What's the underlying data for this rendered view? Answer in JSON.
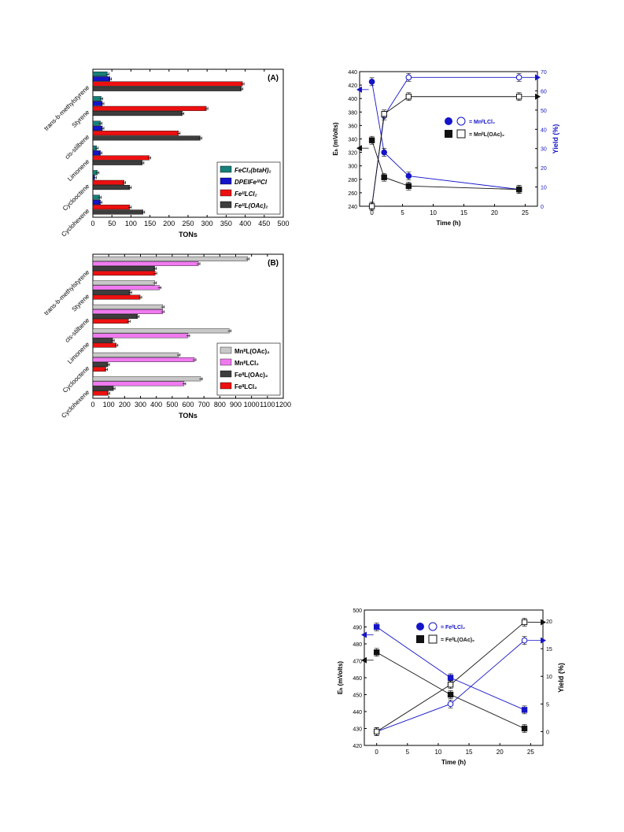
{
  "chart_data": [
    {
      "type": "bar",
      "orientation": "horizontal",
      "panel_label": "(A)",
      "xlabel": "TONs",
      "xlim": [
        0,
        500
      ],
      "xticks": [
        0,
        50,
        100,
        150,
        200,
        250,
        300,
        350,
        400,
        450,
        500
      ],
      "categories": [
        "trans-b-methylstyrene",
        "Styrene",
        "cis-stilbene",
        "Limonene",
        "Cyclooctene",
        "Cyclohexene"
      ],
      "legend_position": "bottom-right",
      "series": [
        {
          "name": "FeCl₂(btaH)₂",
          "color": "#16807a",
          "values": [
            38,
            22,
            20,
            10,
            12,
            18
          ]
        },
        {
          "name": "DPEIFeᴵᴵᴵCl",
          "color": "#1414c8",
          "values": [
            45,
            25,
            25,
            20,
            5,
            20
          ]
        },
        {
          "name": "FeᴵᴵLCl₂",
          "color": "#ee1010",
          "values": [
            393,
            298,
            225,
            148,
            82,
            97
          ]
        },
        {
          "name": "FeᴵᴵL(OAc)₂",
          "color": "#3d3d3d",
          "values": [
            390,
            235,
            282,
            130,
            97,
            132
          ]
        }
      ]
    },
    {
      "type": "bar",
      "orientation": "horizontal",
      "panel_label": "(B)",
      "xlabel": "TONs",
      "xlim": [
        0,
        1200
      ],
      "xticks": [
        0,
        100,
        200,
        300,
        400,
        500,
        600,
        700,
        800,
        900,
        1000,
        1100,
        1200
      ],
      "categories": [
        "trans-b-methylstyrene",
        "Styrene",
        "cis-stilbene",
        "Limonene",
        "Cyclooctene",
        "Cyclohexene"
      ],
      "legend_position": "bottom-right",
      "series": [
        {
          "name": "MnᴵᴵL(OAc)₂",
          "color": "#c8c8c8",
          "values": [
            975,
            390,
            440,
            860,
            540,
            680
          ]
        },
        {
          "name": "MnᴵᴵLCl₂",
          "color": "#f07af0",
          "values": [
            665,
            420,
            440,
            600,
            640,
            575
          ]
        },
        {
          "name": "FeᴵᴵL(OAc)₂",
          "color": "#3d3d3d",
          "values": [
            390,
            235,
            282,
            125,
            95,
            130
          ]
        },
        {
          "name": "FeᴵᴵLCl₂",
          "color": "#ee1010",
          "values": [
            393,
            298,
            225,
            148,
            82,
            97
          ]
        }
      ]
    },
    {
      "type": "line",
      "xlabel": "Time (h)",
      "ylabel_left": "Eₕ (mVolts)",
      "ylabel_right": "Yield (%)",
      "xlim": [
        -2,
        27
      ],
      "ylim_left": [
        240,
        440
      ],
      "ylim_right": [
        0,
        70
      ],
      "xticks": [
        0,
        5,
        10,
        15,
        20,
        25
      ],
      "yticks_left": [
        240,
        260,
        280,
        300,
        320,
        340,
        360,
        380,
        400,
        420,
        440
      ],
      "yticks_right": [
        0,
        10,
        20,
        30,
        40,
        50,
        60,
        70
      ],
      "legend": [
        {
          "label": "= MnᴵᴵLCl₂",
          "color": "#1414c8"
        },
        {
          "label": "= MnᴵᴵL(OAc)₂",
          "color": "#111111"
        }
      ],
      "series": [
        {
          "axis": "left",
          "marker": "circle",
          "filled": true,
          "color": "#1414c8",
          "x": [
            0,
            2,
            6,
            24
          ],
          "y": [
            425,
            320,
            285,
            265
          ]
        },
        {
          "axis": "right",
          "marker": "circle",
          "filled": false,
          "color": "#1414c8",
          "x": [
            0,
            2,
            6,
            24
          ],
          "y": [
            0,
            47,
            67,
            67
          ]
        },
        {
          "axis": "left",
          "marker": "square",
          "filled": true,
          "color": "#111111",
          "x": [
            0,
            2,
            6,
            24
          ],
          "y": [
            338,
            283,
            270,
            265
          ]
        },
        {
          "axis": "right",
          "marker": "square",
          "filled": false,
          "color": "#111111",
          "x": [
            0,
            2,
            6,
            24
          ],
          "y": [
            0,
            48,
            57,
            57
          ]
        }
      ]
    },
    {
      "type": "line",
      "xlabel": "Time (h)",
      "ylabel_left": "Eₕ (mVolts)",
      "ylabel_right": "Yield (%)",
      "xlim": [
        -2,
        27
      ],
      "ylim_left": [
        420,
        500
      ],
      "ylim_right": [
        -2.5,
        22
      ],
      "xticks": [
        0,
        5,
        10,
        15,
        20,
        25
      ],
      "yticks_left": [
        420,
        430,
        440,
        450,
        460,
        470,
        480,
        490,
        500
      ],
      "yticks_right": [
        0,
        5,
        10,
        15,
        20
      ],
      "legend": [
        {
          "label": "= FeᴵᴵLCl₂",
          "color": "#1414c8"
        },
        {
          "label": "= FeᴵᴵL(OAc)₂",
          "color": "#111111"
        }
      ],
      "series": [
        {
          "axis": "left",
          "marker": "square",
          "filled": true,
          "color": "#1414c8",
          "x": [
            0,
            12,
            24
          ],
          "y": [
            490,
            460,
            441
          ]
        },
        {
          "axis": "right",
          "marker": "circle",
          "filled": false,
          "color": "#1414c8",
          "x": [
            0,
            12,
            24
          ],
          "y": [
            0,
            5,
            16.5
          ]
        },
        {
          "axis": "left",
          "marker": "square",
          "filled": true,
          "color": "#111111",
          "x": [
            0,
            12,
            24
          ],
          "y": [
            475,
            450,
            430
          ]
        },
        {
          "axis": "right",
          "marker": "square",
          "filled": false,
          "color": "#111111",
          "x": [
            0,
            12,
            24
          ],
          "y": [
            0,
            8.5,
            19.8
          ]
        }
      ]
    }
  ]
}
